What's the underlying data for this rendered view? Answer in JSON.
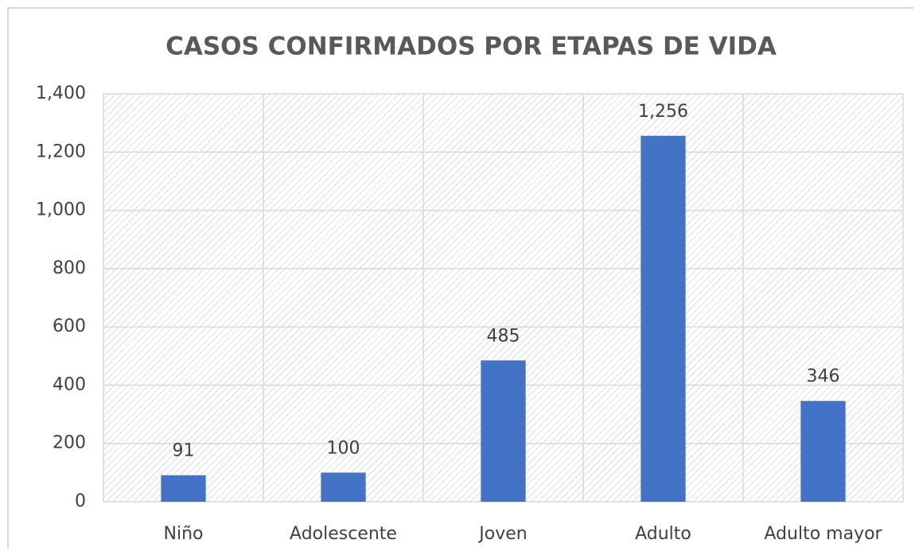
{
  "chart_data": {
    "type": "bar",
    "title": "CASOS CONFIRMADOS POR ETAPAS DE VIDA",
    "categories": [
      "Niño",
      "Adolescente",
      "Joven",
      "Adulto",
      "Adulto mayor"
    ],
    "values": [
      91,
      100,
      485,
      1256,
      346
    ],
    "value_labels": [
      "91",
      "100",
      "485",
      "1,256",
      "346"
    ],
    "color": "#4472c4",
    "ylim": [
      0,
      1400
    ],
    "yticks": [
      0,
      200,
      400,
      600,
      800,
      {
        "value": 1000,
        "label": "1,000"
      },
      {
        "value": 1200,
        "label": "1,200"
      },
      {
        "value": 1400,
        "label": "1,400"
      }
    ],
    "grid": true
  }
}
